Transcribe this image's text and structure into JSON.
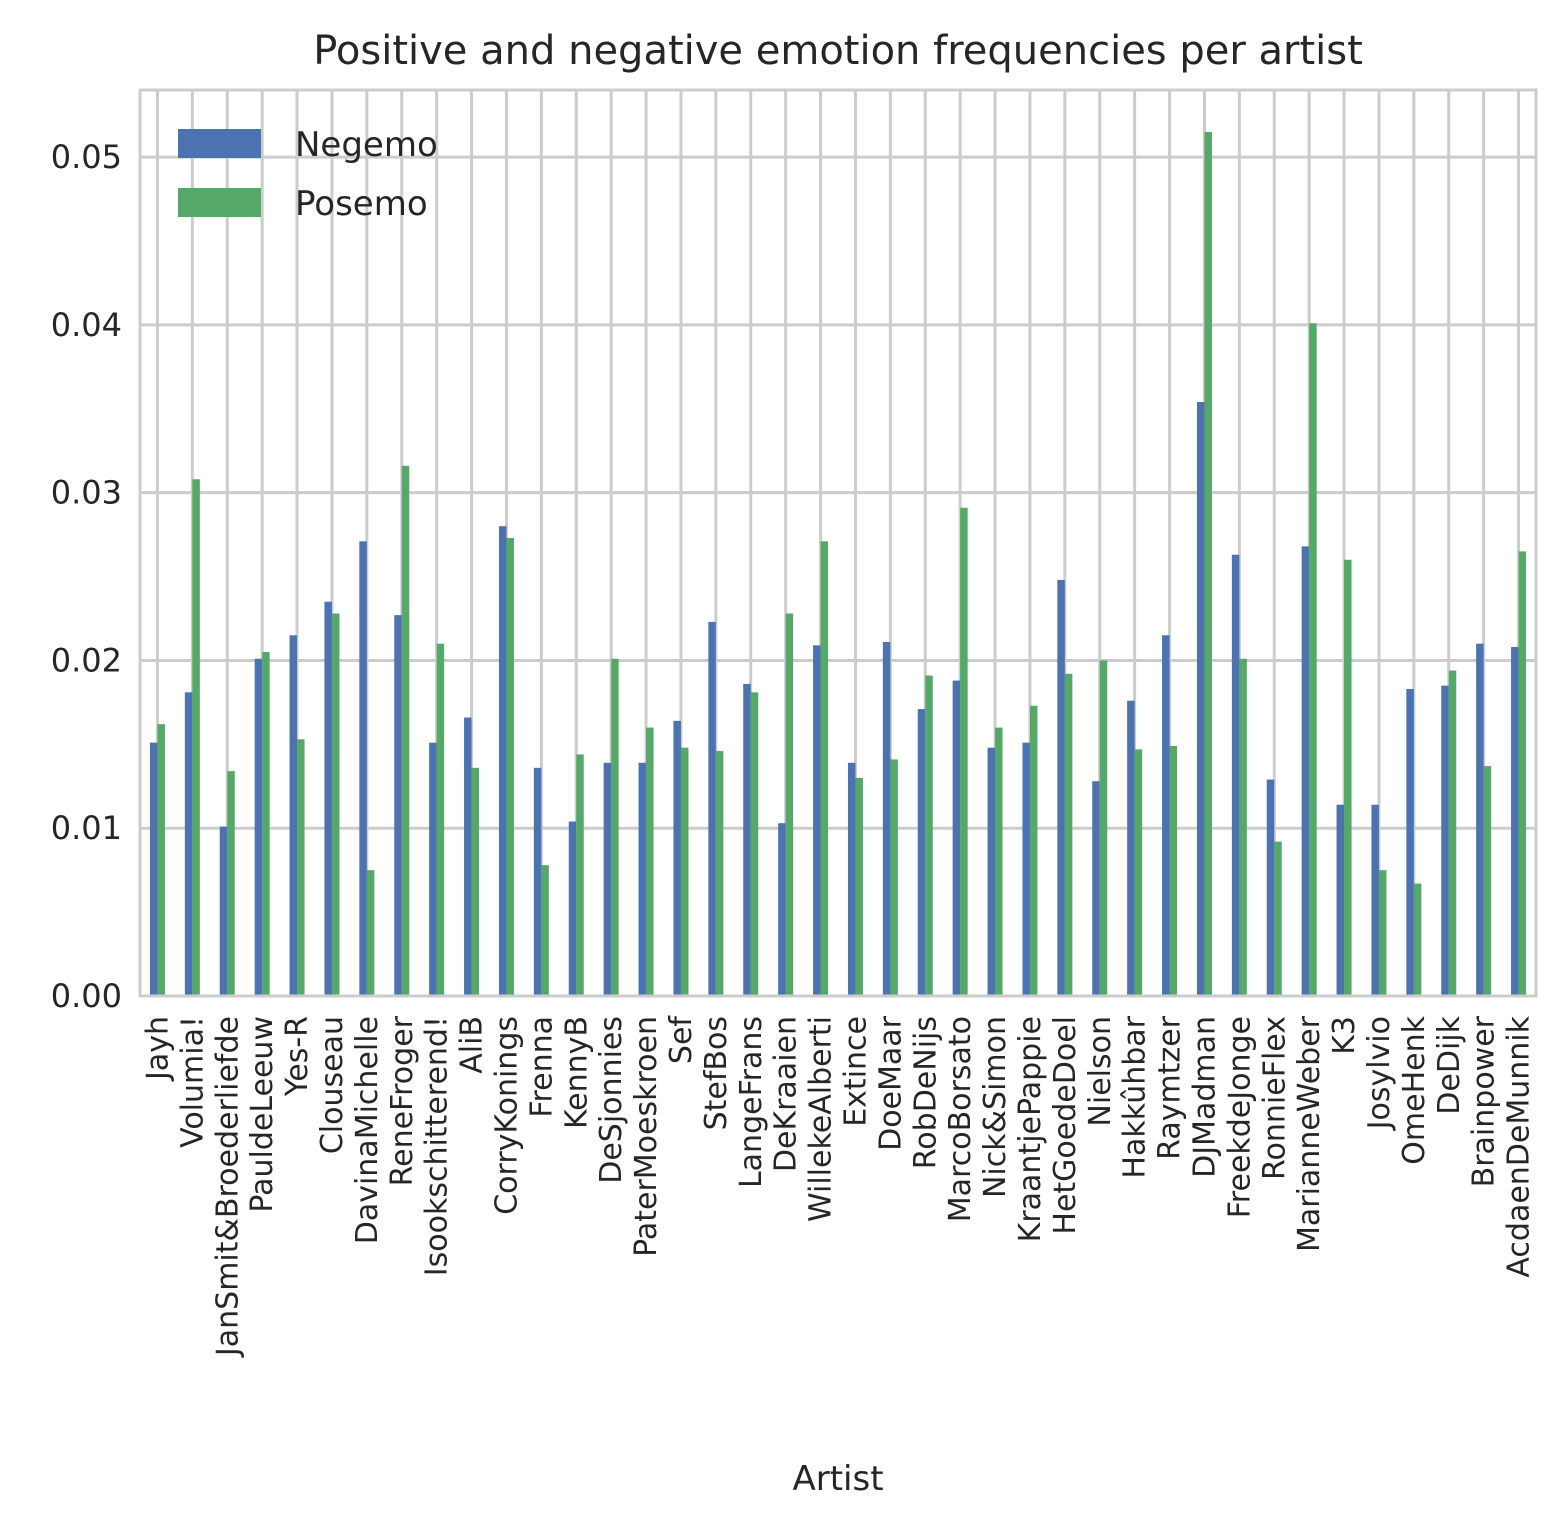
{
  "chart_data": {
    "type": "bar",
    "title": "Positive and negative emotion frequencies per artist",
    "xlabel": "Artist",
    "ylabel": "",
    "ylim": [
      0,
      0.054
    ],
    "yticks": [
      "0.00",
      "0.01",
      "0.02",
      "0.03",
      "0.04",
      "0.05"
    ],
    "ytick_values": [
      0,
      0.01,
      0.02,
      0.03,
      0.04,
      0.05
    ],
    "grid": true,
    "legend_position": "top-left",
    "categories": [
      "Jayh",
      "Volumia!",
      "JanSmit&Broederliefde",
      "PauldeLeeuw",
      "Yes-R",
      "Clouseau",
      "DavinaMichelle",
      "ReneFroger",
      "Isookschitterend!",
      "AliB",
      "CorryKonings",
      "Frenna",
      "KennyB",
      "DeSjonnies",
      "PaterMoeskroen",
      "Sef",
      "StefBos",
      "LangeFrans",
      "DeKraaien",
      "WillekeAlberti",
      "Extince",
      "DoeMaar",
      "RobDeNijs",
      "MarcoBorsato",
      "Nick&Simon",
      "KraantjePappie",
      "HetGoedeDoel",
      "Nielson",
      "Hakkûhbar",
      "Raymtzer",
      "DJMadman",
      "FreekdeJonge",
      "RonnieFlex",
      "MarianneWeber",
      "K3",
      "Josylvio",
      "OmeHenk",
      "DeDijk",
      "Brainpower",
      "AcdaenDeMunnik"
    ],
    "series": [
      {
        "name": "Negemo",
        "color": "#4c72b0",
        "values": [
          0.0151,
          0.0181,
          0.0101,
          0.0201,
          0.0215,
          0.0235,
          0.0271,
          0.0227,
          0.0151,
          0.0166,
          0.028,
          0.0136,
          0.0104,
          0.0139,
          0.0139,
          0.0164,
          0.0223,
          0.0186,
          0.0103,
          0.0209,
          0.0139,
          0.0211,
          0.0171,
          0.0188,
          0.0148,
          0.0151,
          0.0248,
          0.0128,
          0.0176,
          0.0215,
          0.0354,
          0.0263,
          0.0129,
          0.0268,
          0.0114,
          0.0114,
          0.0183,
          0.0185,
          0.021,
          0.0208
        ]
      },
      {
        "name": "Posemo",
        "color": "#55a868",
        "values": [
          0.0162,
          0.0308,
          0.0134,
          0.0205,
          0.0153,
          0.0228,
          0.0075,
          0.0316,
          0.021,
          0.0136,
          0.0273,
          0.0078,
          0.0144,
          0.0201,
          0.016,
          0.0148,
          0.0146,
          0.0181,
          0.0228,
          0.0271,
          0.013,
          0.0141,
          0.0191,
          0.0291,
          0.016,
          0.0173,
          0.0192,
          0.02,
          0.0147,
          0.0149,
          0.0515,
          0.0201,
          0.0092,
          0.0401,
          0.026,
          0.0075,
          0.0067,
          0.0194,
          0.0137,
          0.0265
        ]
      }
    ]
  }
}
